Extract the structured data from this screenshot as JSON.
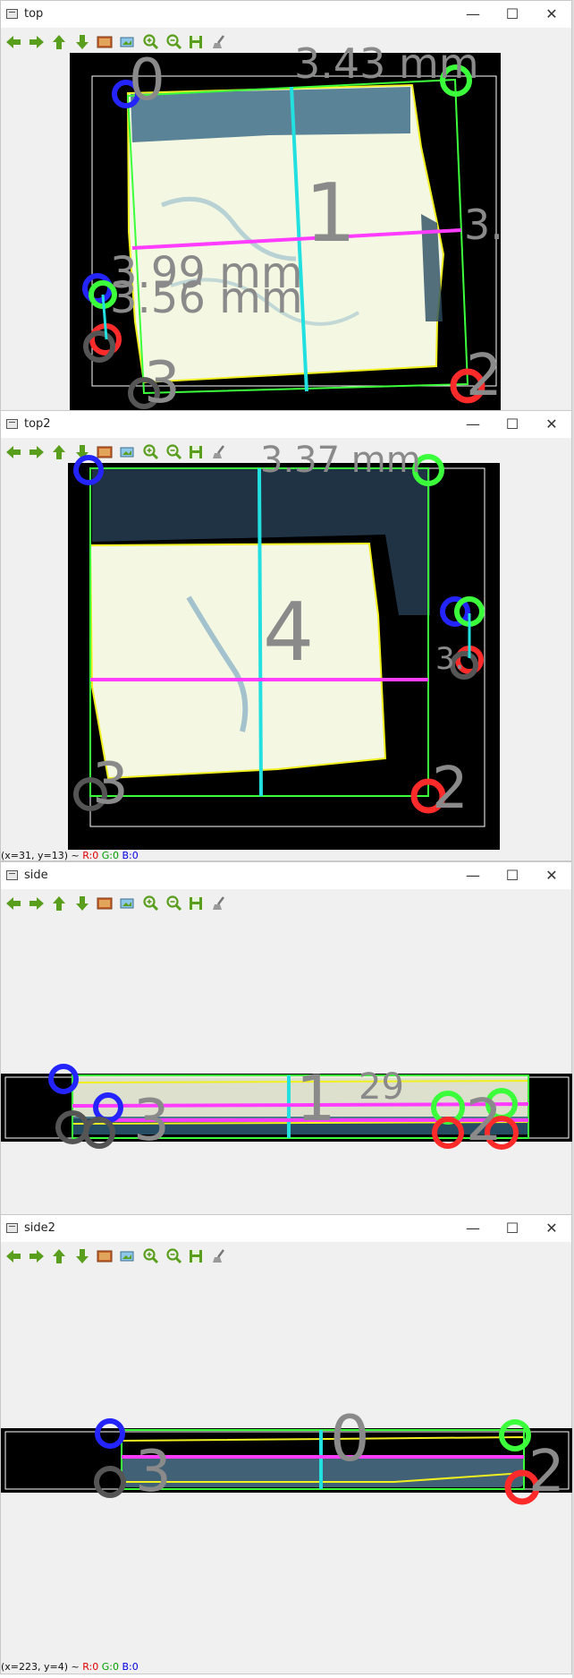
{
  "windows": [
    {
      "title": "top"
    },
    {
      "title": "top2"
    },
    {
      "title": "side"
    },
    {
      "title": "side2"
    }
  ],
  "window_buttons": {
    "minimize": "—",
    "maximize": "☐",
    "close": "✕"
  },
  "toolbar_icons": [
    "arrow-left-icon",
    "arrow-right-icon",
    "arrow-up-icon",
    "arrow-down-icon",
    "image-icon",
    "image-properties-icon",
    "zoom-in-icon",
    "zoom-out-icon",
    "save-icon",
    "clear-brush-icon"
  ],
  "overlays": {
    "top": {
      "corner_labels": [
        "0",
        "1",
        "2",
        "3"
      ],
      "measure_a": "3.43 mm",
      "measure_b": "3.",
      "measure_c": "3.99 mm",
      "measure_d": "3.56 mm"
    },
    "top2": {
      "corner_labels": [
        "4",
        "2",
        "3"
      ],
      "measure_a": "3.37 mm",
      "measure_b": "3."
    },
    "side": {
      "labels": [
        "3",
        "1",
        "2",
        "29"
      ]
    },
    "side2": {
      "labels": [
        "3",
        "0",
        "2"
      ]
    }
  },
  "status": {
    "top2": {
      "coords": "(x=31, y=13) ~",
      "r": "R:0",
      "g": "G:0",
      "b": "B:0"
    },
    "side2": {
      "coords": "(x=223, y=4) ~",
      "r": "R:0",
      "g": "G:0",
      "b": "B:0"
    }
  },
  "colors": {
    "green": "#3cff3c",
    "blue": "#2424ff",
    "red": "#ff2a2a",
    "cyan": "#22e0e0",
    "magenta": "#ff3cff",
    "yellow": "#f0f020",
    "label_gray": "#8a8a8a"
  }
}
